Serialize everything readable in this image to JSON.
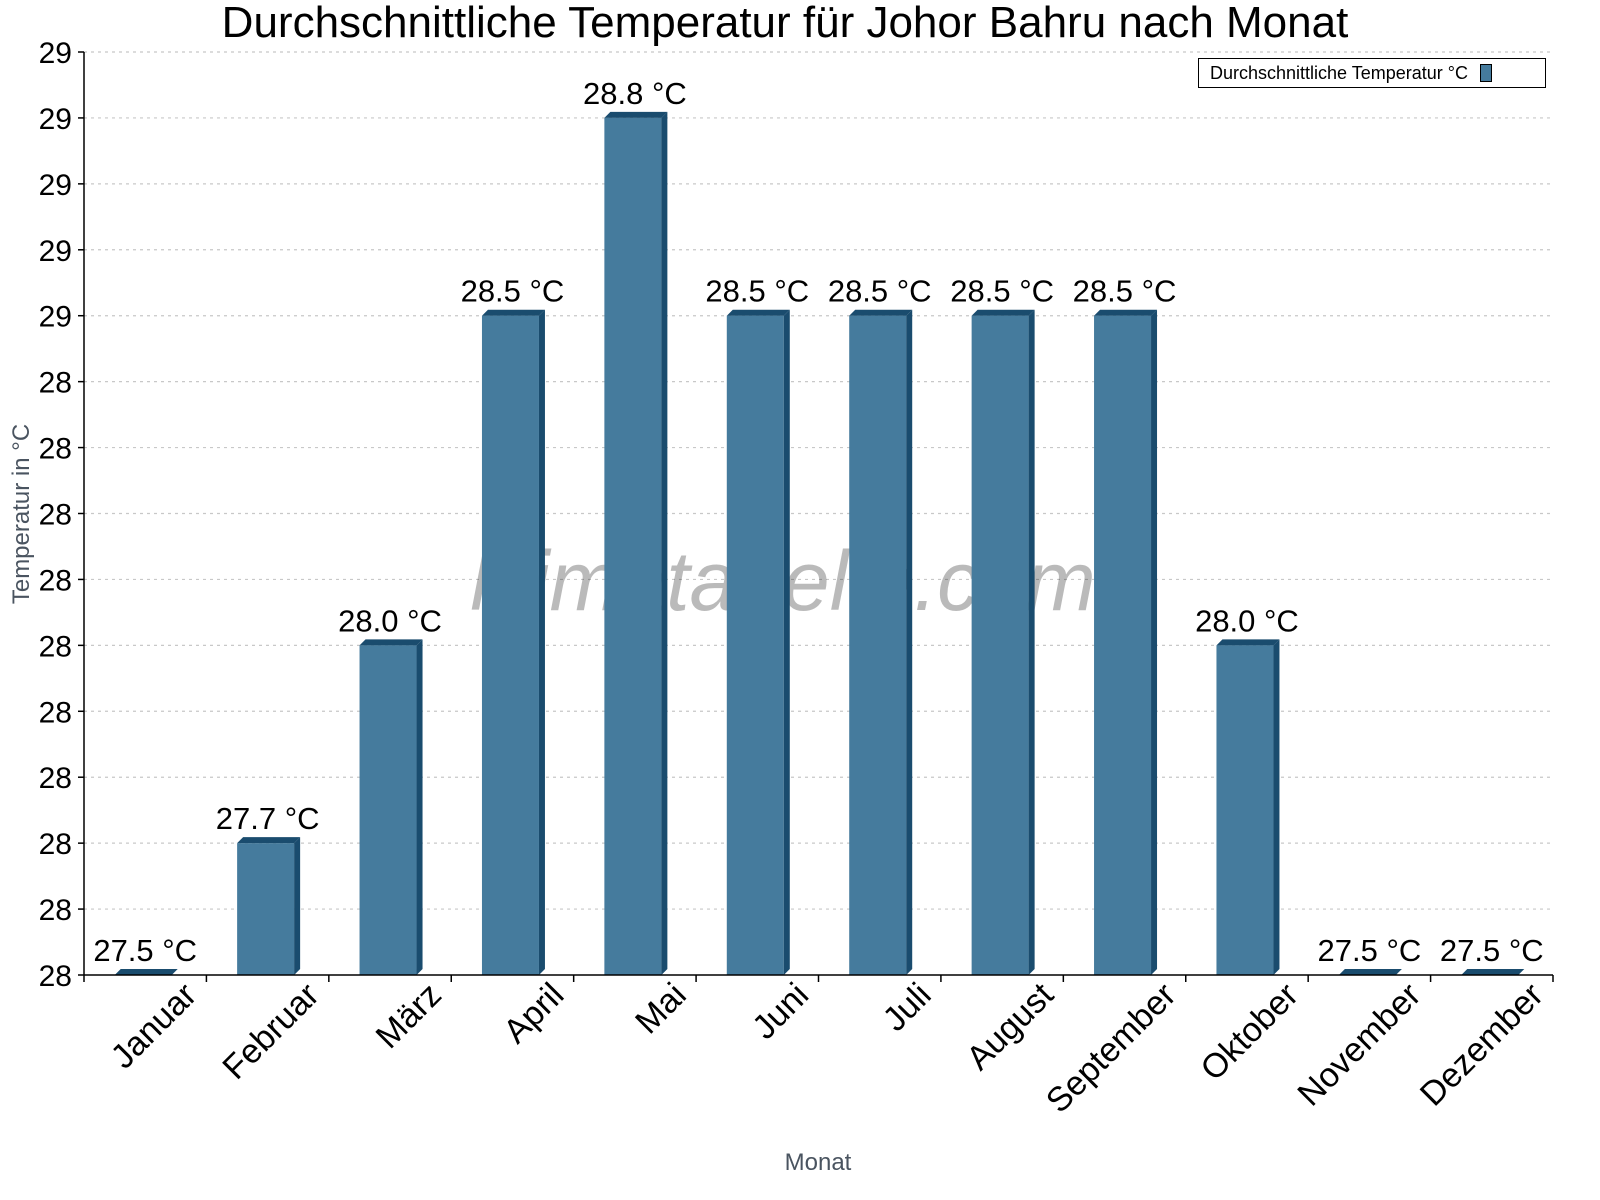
{
  "chart_data": {
    "type": "bar",
    "title": "Durchschnittliche Temperatur für Johor Bahru nach Monat",
    "xlabel": "Monat",
    "ylabel": "Temperatur in °C",
    "categories": [
      "Januar",
      "Februar",
      "März",
      "April",
      "Mai",
      "Juni",
      "Juli",
      "August",
      "September",
      "Oktober",
      "November",
      "Dezember"
    ],
    "series": [
      {
        "name": "Durchschnittliche Temperatur °C",
        "values": [
          27.5,
          27.7,
          28.0,
          28.5,
          28.8,
          28.5,
          28.5,
          28.5,
          28.5,
          28.0,
          27.5,
          27.5
        ],
        "data_labels": [
          "27.5 °C",
          "27.7 °C",
          "28.0 °C",
          "28.5 °C",
          "28.8 °C",
          "28.5 °C",
          "28.5 °C",
          "28.5 °C",
          "28.5 °C",
          "28.0 °C",
          "27.5 °C",
          "27.5 °C"
        ],
        "color": "#457b9d",
        "side_color": "#1a4c6e"
      }
    ],
    "ylim": [
      27.5,
      28.9
    ],
    "y_tick_labels": [
      "29",
      "29",
      "29",
      "29",
      "29",
      "28",
      "28",
      "28",
      "28",
      "28",
      "28",
      "28",
      "28",
      "28",
      "28"
    ],
    "grid": true,
    "legend_position": "top-right",
    "watermark": "klimatabelle.com"
  },
  "legend": {
    "label": "Durchschnittliche Temperatur °C"
  }
}
